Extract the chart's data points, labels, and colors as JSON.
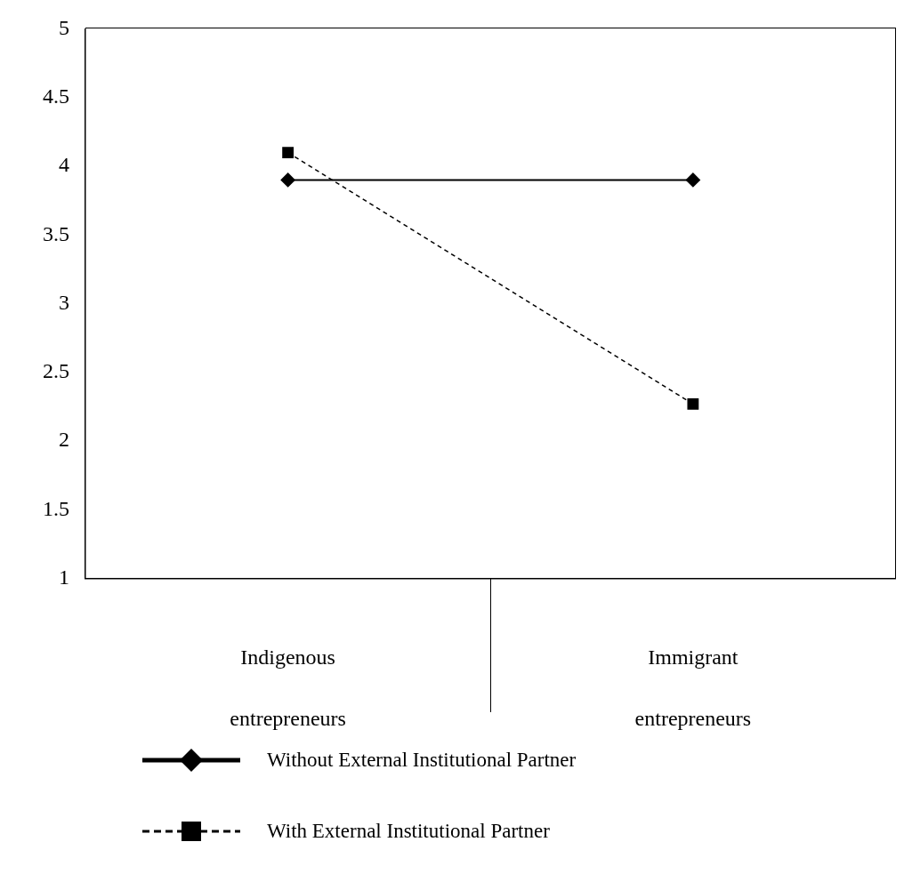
{
  "chart_data": {
    "type": "line",
    "categories": [
      "Indigenous entrepreneurs",
      "Immigrant entrepreneurs"
    ],
    "series": [
      {
        "name": "Without External Institutional Partner",
        "color": "#000000",
        "values": [
          3.9,
          3.9
        ],
        "marker": "diamond",
        "line_style": "solid"
      },
      {
        "name": "With External Institutional Partner",
        "color": "#000000",
        "values": [
          4.1,
          2.27
        ],
        "marker": "square",
        "line_style": "dashed"
      }
    ],
    "ylim": [
      1,
      5
    ],
    "yticks": [
      1,
      1.5,
      2,
      2.5,
      3,
      3.5,
      4,
      4.5,
      5
    ],
    "grid": false,
    "legend": "bottom"
  }
}
